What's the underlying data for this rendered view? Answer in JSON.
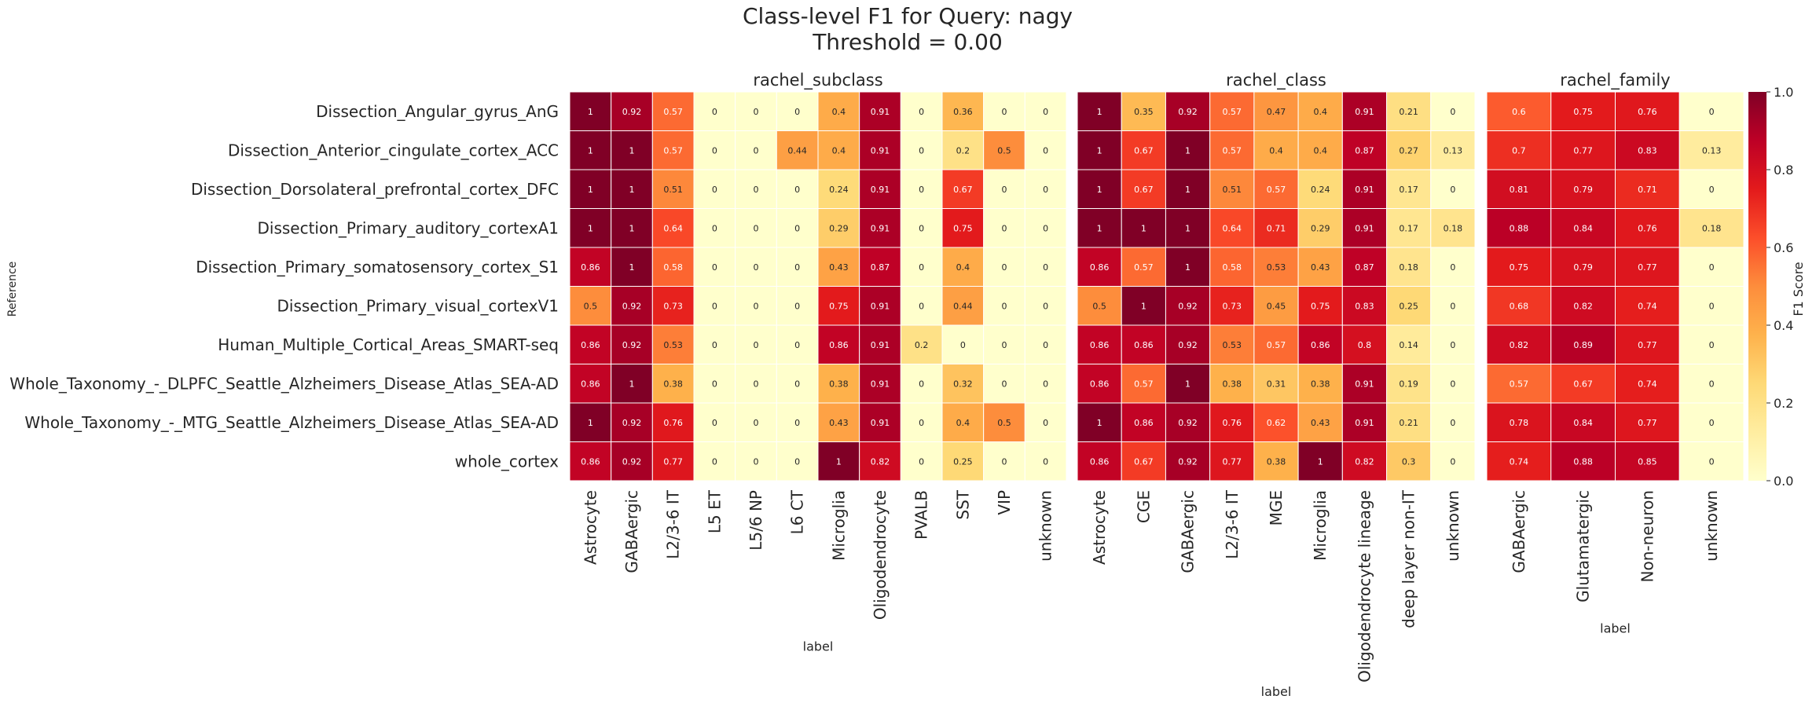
{
  "chart_data": {
    "type": "heatmap",
    "title": "Class-level F1 for Query: nagy",
    "subtitle": "Threshold = 0.00",
    "ylabel": "Reference",
    "rows": [
      "Dissection_Angular_gyrus_AnG",
      "Dissection_Anterior_cingulate_cortex_ACC",
      "Dissection_Dorsolateral_prefrontal_cortex_DFC",
      "Dissection_Primary_auditory_cortexA1",
      "Dissection_Primary_somatosensory_cortex_S1",
      "Dissection_Primary_visual_cortexV1",
      "Human_Multiple_Cortical_Areas_SMART-seq",
      "Whole_Taxonomy_-_DLPFC_Seattle_Alzheimers_Disease_Atlas_SEA-AD",
      "Whole_Taxonomy_-_MTG_Seattle_Alzheimers_Disease_Atlas_SEA-AD",
      "whole_cortex"
    ],
    "colorbar": {
      "label": "F1 Score",
      "ticks": [
        "0.0",
        "0.2",
        "0.4",
        "0.6",
        "0.8",
        "1.0"
      ],
      "range": [
        0,
        1
      ],
      "colormap": "YlOrRd",
      "stops": [
        "#ffffcc",
        "#ffeda0",
        "#fed976",
        "#feb24c",
        "#fd8d3c",
        "#fc4e2a",
        "#e31a1c",
        "#bd0026",
        "#800026"
      ]
    },
    "panels": [
      {
        "title": "rachel_subclass",
        "xlabel": "label",
        "columns": [
          "Astrocyte",
          "GABAergic",
          "L2/3-6 IT",
          "L5 ET",
          "L5/6 NP",
          "L6 CT",
          "Microglia",
          "Oligodendrocyte",
          "PVALB",
          "SST",
          "VIP",
          "unknown"
        ],
        "values": [
          [
            1,
            0.92,
            0.57,
            0,
            0,
            0,
            0.4,
            0.91,
            0,
            0.36,
            0,
            0
          ],
          [
            1,
            1,
            0.57,
            0,
            0,
            0.44,
            0.4,
            0.91,
            0,
            0.2,
            0.5,
            0
          ],
          [
            1,
            1,
            0.51,
            0,
            0,
            0,
            0.24,
            0.91,
            0,
            0.67,
            0,
            0
          ],
          [
            1,
            1,
            0.64,
            0,
            0,
            0,
            0.29,
            0.91,
            0,
            0.75,
            0,
            0
          ],
          [
            0.86,
            1,
            0.58,
            0,
            0,
            0,
            0.43,
            0.87,
            0,
            0.4,
            0,
            0
          ],
          [
            0.5,
            0.92,
            0.73,
            0,
            0,
            0,
            0.75,
            0.91,
            0,
            0.44,
            0,
            0
          ],
          [
            0.86,
            0.92,
            0.53,
            0,
            0,
            0,
            0.86,
            0.91,
            0.2,
            0,
            0,
            0
          ],
          [
            0.86,
            1,
            0.38,
            0,
            0,
            0,
            0.38,
            0.91,
            0,
            0.32,
            0,
            0
          ],
          [
            1,
            0.92,
            0.76,
            0,
            0,
            0,
            0.43,
            0.91,
            0,
            0.4,
            0.5,
            0
          ],
          [
            0.86,
            0.92,
            0.77,
            0,
            0,
            0,
            1,
            0.82,
            0,
            0.25,
            0,
            0
          ]
        ]
      },
      {
        "title": "rachel_class",
        "xlabel": "label",
        "columns": [
          "Astrocyte",
          "CGE",
          "GABAergic",
          "L2/3-6 IT",
          "MGE",
          "Microglia",
          "Oligodendrocyte lineage",
          "deep layer non-IT",
          "unknown"
        ],
        "values": [
          [
            1,
            0.35,
            0.92,
            0.57,
            0.47,
            0.4,
            0.91,
            0.21,
            0
          ],
          [
            1,
            0.67,
            1,
            0.57,
            0.4,
            0.4,
            0.87,
            0.27,
            0.13
          ],
          [
            1,
            0.67,
            1,
            0.51,
            0.57,
            0.24,
            0.91,
            0.17,
            0
          ],
          [
            1,
            1,
            1,
            0.64,
            0.71,
            0.29,
            0.91,
            0.17,
            0.18
          ],
          [
            0.86,
            0.57,
            1,
            0.58,
            0.53,
            0.43,
            0.87,
            0.18,
            0
          ],
          [
            0.5,
            1,
            0.92,
            0.73,
            0.45,
            0.75,
            0.83,
            0.25,
            0
          ],
          [
            0.86,
            0.86,
            0.92,
            0.53,
            0.57,
            0.86,
            0.8,
            0.14,
            0
          ],
          [
            0.86,
            0.57,
            1,
            0.38,
            0.31,
            0.38,
            0.91,
            0.19,
            0
          ],
          [
            1,
            0.86,
            0.92,
            0.76,
            0.62,
            0.43,
            0.91,
            0.21,
            0
          ],
          [
            0.86,
            0.67,
            0.92,
            0.77,
            0.38,
            1,
            0.82,
            0.3,
            0
          ]
        ]
      },
      {
        "title": "rachel_family",
        "xlabel": "label",
        "columns": [
          "GABAergic",
          "Glutamatergic",
          "Non-neuron",
          "unknown"
        ],
        "values": [
          [
            0.6,
            0.75,
            0.76,
            0
          ],
          [
            0.7,
            0.77,
            0.83,
            0.13
          ],
          [
            0.81,
            0.79,
            0.71,
            0
          ],
          [
            0.88,
            0.84,
            0.76,
            0.18
          ],
          [
            0.75,
            0.79,
            0.77,
            0
          ],
          [
            0.68,
            0.82,
            0.74,
            0
          ],
          [
            0.82,
            0.89,
            0.77,
            0
          ],
          [
            0.57,
            0.67,
            0.74,
            0
          ],
          [
            0.78,
            0.84,
            0.77,
            0
          ],
          [
            0.74,
            0.88,
            0.85,
            0
          ]
        ]
      }
    ]
  }
}
